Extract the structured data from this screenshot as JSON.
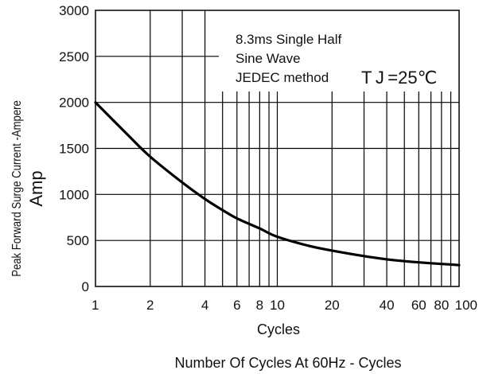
{
  "chart_data": {
    "type": "line",
    "title": "",
    "xlabel": "Cycles",
    "ylabel": "Peak Forward Surge Current -Ampere",
    "ylabel_unit": "Amp",
    "footer": "Number Of Cycles At 60Hz - Cycles",
    "x_scale": "log",
    "xlim": [
      1,
      100
    ],
    "ylim": [
      0,
      3000
    ],
    "grid": true,
    "x_ticks": [
      1,
      2,
      4,
      6,
      8,
      10,
      20,
      40,
      60,
      80,
      100
    ],
    "x_tick_labels": [
      "1",
      "2",
      "4",
      "6",
      "8",
      "10",
      "20",
      "40",
      "60",
      "80",
      "100"
    ],
    "y_ticks": [
      0,
      500,
      1000,
      1500,
      2000,
      2500,
      3000
    ],
    "y_tick_labels": [
      "0",
      "500",
      "1000",
      "1500",
      "2000",
      "2500",
      "3000"
    ],
    "annotation": {
      "lines": [
        "8.3ms Single Half",
        "Sine Wave",
        "JEDEC method"
      ],
      "temperature": "T J =25℃"
    },
    "series": [
      {
        "name": "",
        "color": "#000000",
        "x": [
          1,
          1.5,
          2,
          3,
          4,
          5,
          6,
          8,
          10,
          15,
          20,
          30,
          40,
          50,
          60,
          80,
          100
        ],
        "y": [
          2000,
          1650,
          1410,
          1130,
          950,
          830,
          740,
          630,
          540,
          440,
          390,
          330,
          295,
          275,
          262,
          245,
          232
        ]
      }
    ]
  }
}
